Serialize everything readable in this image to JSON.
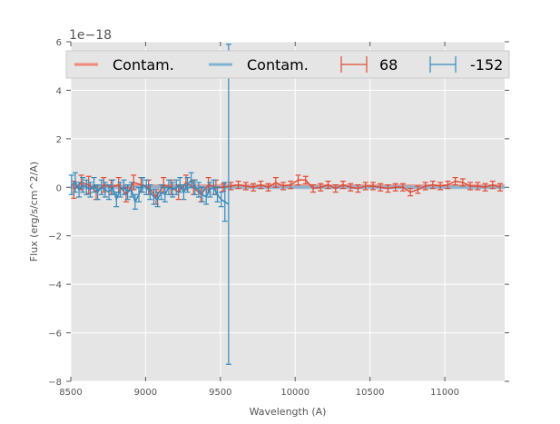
{
  "chart_data": {
    "type": "line",
    "title": "",
    "xlabel": "Wavelength (A)",
    "ylabel": "Flux (erg/s/cm^2/A)",
    "offset_label": "1e−18",
    "xlim": [
      8500,
      11400
    ],
    "ylim": [
      -8,
      6
    ],
    "xticks": [
      8500,
      9000,
      9500,
      10000,
      10500,
      11000
    ],
    "yticks": [
      -8,
      -6,
      -4,
      -2,
      0,
      2,
      4,
      6
    ],
    "grid": true,
    "legend_position": "top",
    "background": "#e5e5e5",
    "colors": {
      "red": "#e24a33",
      "blue": "#348abd",
      "red_contam": "#f0897a",
      "blue_contam": "#7fb3d5"
    },
    "legend": [
      {
        "label": "Contam.",
        "kind": "line",
        "color": "red_contam"
      },
      {
        "label": "Contam.",
        "kind": "line",
        "color": "blue_contam"
      },
      {
        "label": "68",
        "kind": "errorbar",
        "color": "red"
      },
      {
        "label": "-152",
        "kind": "errorbar",
        "color": "blue"
      }
    ],
    "series": [
      {
        "name": "68",
        "kind": "errorbar",
        "color": "red",
        "x_start": 8520,
        "x_step": 50,
        "y": [
          -0.1,
          0.2,
          0.1,
          -0.2,
          0.1,
          0.0,
          0.1,
          -0.3,
          0.2,
          0.1,
          0.0,
          -0.4,
          0.1,
          0.0,
          -0.2,
          0.2,
          0.0,
          -0.3,
          0.1,
          0.0,
          0.0,
          0.05,
          0.1,
          0.05,
          0.0,
          0.1,
          0.0,
          0.2,
          0.05,
          0.1,
          0.3,
          0.3,
          -0.05,
          0.0,
          0.1,
          -0.05,
          0.1,
          0.0,
          -0.05,
          0.05,
          0.05,
          0.0,
          -0.05,
          0.0,
          0.0,
          -0.2,
          -0.1,
          0.05,
          0.1,
          0.05,
          0.1,
          0.25,
          0.2,
          0.05,
          0.05,
          0.0,
          0.1,
          0.0
        ],
        "yerr": [
          0.35,
          0.3,
          0.35,
          0.3,
          0.3,
          0.3,
          0.3,
          0.3,
          0.3,
          0.3,
          0.3,
          0.3,
          0.3,
          0.3,
          0.3,
          0.3,
          0.3,
          0.3,
          0.3,
          0.3,
          0.15,
          0.15,
          0.15,
          0.15,
          0.15,
          0.15,
          0.15,
          0.2,
          0.15,
          0.15,
          0.2,
          0.15,
          0.15,
          0.15,
          0.15,
          0.15,
          0.15,
          0.15,
          0.15,
          0.15,
          0.15,
          0.15,
          0.15,
          0.15,
          0.15,
          0.15,
          0.15,
          0.15,
          0.15,
          0.15,
          0.15,
          0.15,
          0.15,
          0.15,
          0.15,
          0.15,
          0.15,
          0.15
        ]
      },
      {
        "name": "-152",
        "kind": "errorbar",
        "color": "blue",
        "x_start": 8505,
        "x_step": 25,
        "y": [
          0.1,
          0.2,
          -0.1,
          0.1,
          0.0,
          -0.1,
          0.1,
          -0.2,
          0.0,
          -0.1,
          -0.2,
          0.0,
          -0.5,
          -0.1,
          0.0,
          -0.2,
          -0.1,
          -0.6,
          -0.3,
          0.1,
          0.0,
          -0.2,
          -0.4,
          -0.5,
          -0.2,
          -0.3,
          0.0,
          -0.1,
          0.0,
          0.1,
          -0.2,
          0.1,
          0.3,
          0.0,
          -0.1,
          -0.3,
          -0.4,
          -0.1,
          0.0,
          -0.3,
          -0.5,
          -0.6,
          -0.7
        ],
        "yerr": [
          0.4,
          0.4,
          0.3,
          0.3,
          0.3,
          0.3,
          0.3,
          0.3,
          0.3,
          0.3,
          0.3,
          0.3,
          0.3,
          0.3,
          0.3,
          0.3,
          0.3,
          0.3,
          0.3,
          0.3,
          0.3,
          0.3,
          0.3,
          0.3,
          0.3,
          0.3,
          0.3,
          0.3,
          0.3,
          0.3,
          0.3,
          0.3,
          0.3,
          0.3,
          0.3,
          0.3,
          0.3,
          0.3,
          0.3,
          0.3,
          0.3,
          0.8,
          6.6
        ]
      },
      {
        "name": "Contam. red",
        "kind": "line",
        "color": "red_contam",
        "x": [
          8500,
          11400
        ],
        "y": [
          0.05,
          0.05
        ]
      },
      {
        "name": "Contam. blue",
        "kind": "line",
        "color": "blue_contam",
        "x": [
          8500,
          11400
        ],
        "y": [
          0.0,
          0.0
        ]
      }
    ]
  }
}
